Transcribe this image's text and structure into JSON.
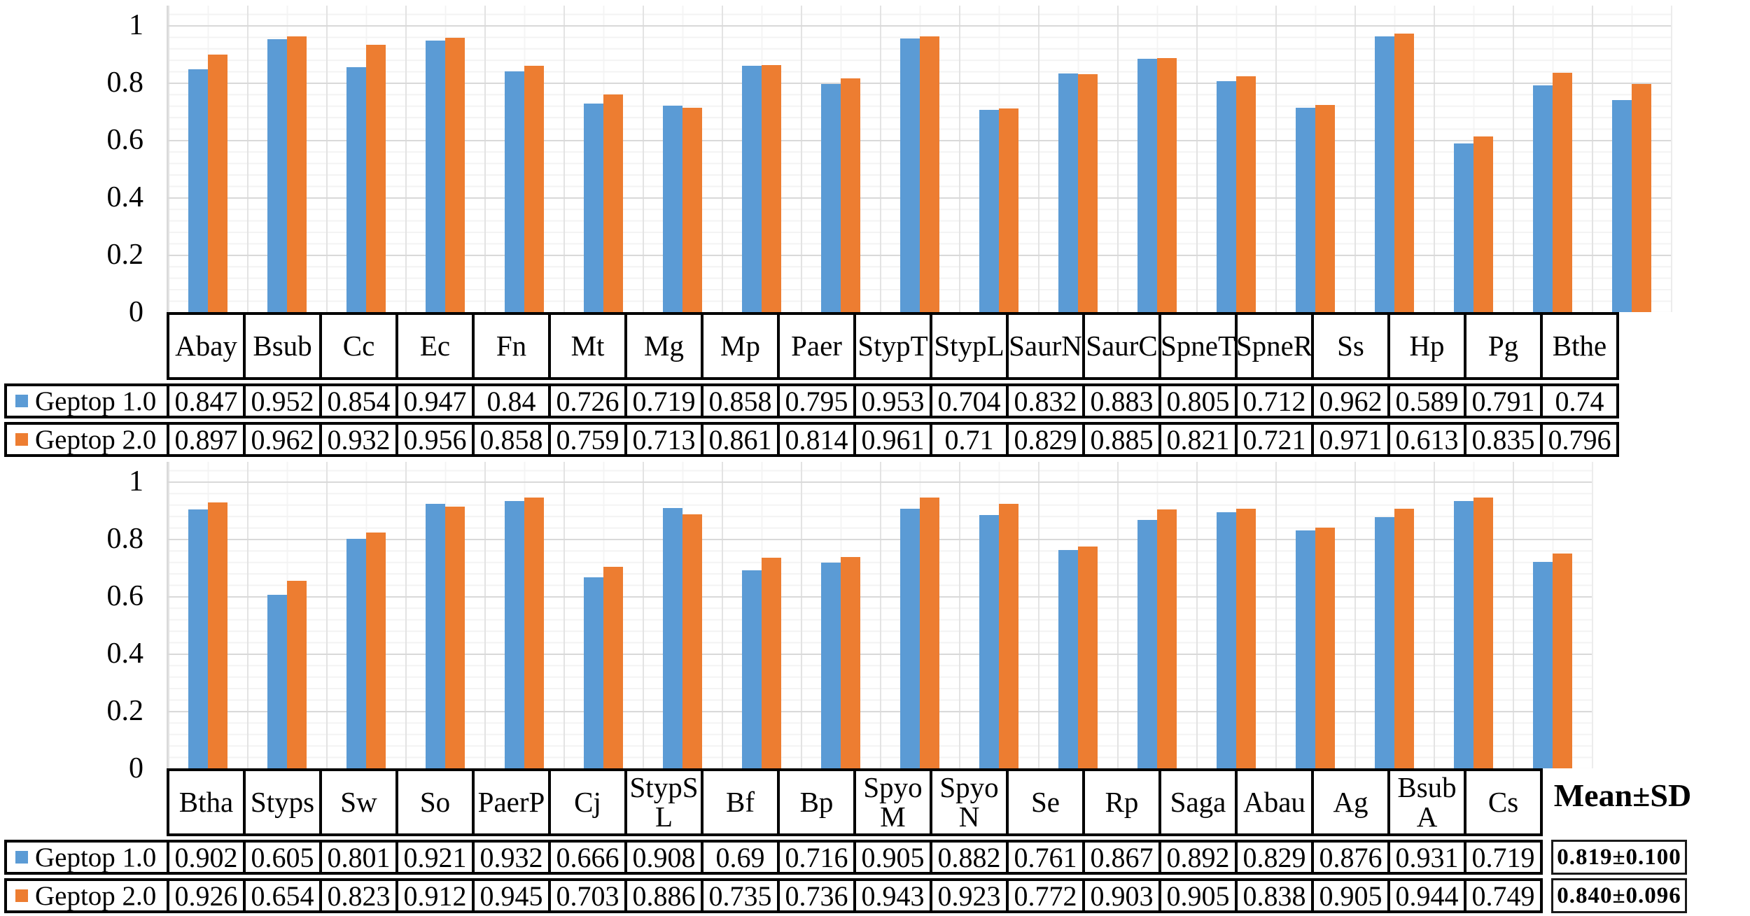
{
  "y_axis_ticks": [
    "1",
    "0.8",
    "0.6",
    "0.4",
    "0.2",
    "0"
  ],
  "legend": {
    "series": [
      {
        "label": "Geptop 1.0",
        "color": "#5B9BD5"
      },
      {
        "label": "Geptop 2.0",
        "color": "#ED7D31"
      }
    ]
  },
  "mean_sd": {
    "header": "Mean±SD",
    "values": [
      "0.819±0.100",
      "0.840±0.096"
    ]
  },
  "chart_data": [
    {
      "type": "bar",
      "title": "",
      "xlabel": "",
      "ylabel": "",
      "ylim": [
        0,
        1
      ],
      "yticks": [
        "1",
        "0.8",
        "0.6",
        "0.4",
        "0.2",
        "0"
      ],
      "grid": true,
      "legend_position": "table-left",
      "categories": [
        "Abay",
        "Bsub",
        "Cc",
        "Ec",
        "Fn",
        "Mt",
        "Mg",
        "Mp",
        "Paer",
        "StypT",
        "StypL",
        "SaurN",
        "SaurC",
        "SpneT",
        "SpneR",
        "Ss",
        "Hp",
        "Pg",
        "Bthe"
      ],
      "series": [
        {
          "name": "Geptop 1.0",
          "values": [
            0.847,
            0.952,
            0.854,
            0.947,
            0.84,
            0.726,
            0.719,
            0.858,
            0.795,
            0.953,
            0.704,
            0.832,
            0.883,
            0.805,
            0.712,
            0.962,
            0.589,
            0.791,
            0.74
          ]
        },
        {
          "name": "Geptop 2.0",
          "values": [
            0.897,
            0.962,
            0.932,
            0.956,
            0.858,
            0.759,
            0.713,
            0.861,
            0.814,
            0.961,
            0.71,
            0.829,
            0.885,
            0.821,
            0.721,
            0.971,
            0.613,
            0.835,
            0.796
          ]
        }
      ]
    },
    {
      "type": "bar",
      "title": "",
      "xlabel": "",
      "ylabel": "",
      "ylim": [
        0,
        1
      ],
      "yticks": [
        "1",
        "0.8",
        "0.6",
        "0.4",
        "0.2",
        "0"
      ],
      "grid": true,
      "legend_position": "table-left",
      "categories": [
        "Btha",
        "Styps",
        "Sw",
        "So",
        "PaerP",
        "Cj",
        "StypSL",
        "Bf",
        "Bp",
        "SpyoM",
        "SpyoN",
        "Se",
        "Rp",
        "Saga",
        "Abau",
        "Ag",
        "BsubA",
        "Cs"
      ],
      "category_display": {
        "6": "StypS\nL",
        "9": "Spyo\nM",
        "10": "Spyo\nN",
        "16": "Bsub\nA"
      },
      "series": [
        {
          "name": "Geptop 1.0",
          "values": [
            0.902,
            0.605,
            0.801,
            0.921,
            0.932,
            0.666,
            0.908,
            0.69,
            0.716,
            0.905,
            0.882,
            0.761,
            0.867,
            0.892,
            0.829,
            0.876,
            0.931,
            0.719
          ]
        },
        {
          "name": "Geptop 2.0",
          "values": [
            0.926,
            0.654,
            0.823,
            0.912,
            0.945,
            0.703,
            0.886,
            0.735,
            0.736,
            0.943,
            0.923,
            0.772,
            0.903,
            0.905,
            0.838,
            0.905,
            0.944,
            0.749
          ]
        }
      ],
      "has_mean_sd_column": true
    }
  ]
}
